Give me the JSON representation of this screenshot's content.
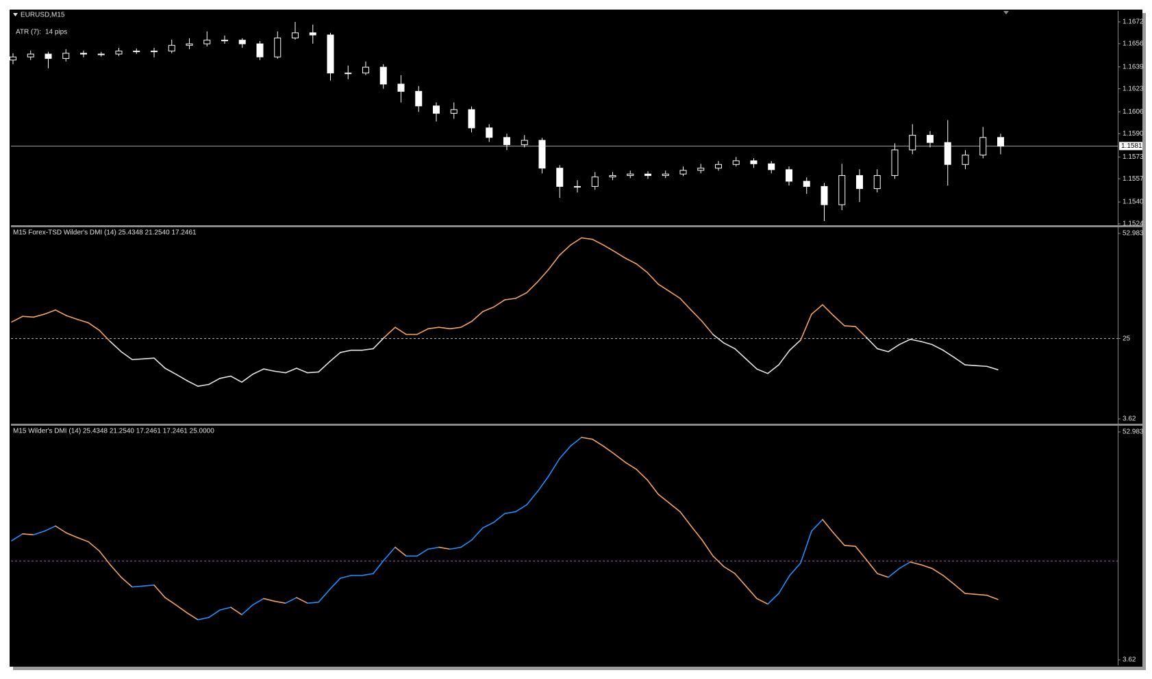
{
  "chart_data": [
    {
      "type": "candlestick",
      "title": "EURUSD,M15",
      "indicator_label": "ATR (7):",
      "indicator_value": "14 pips",
      "open": [
        1.1644,
        1.16463,
        1.16484,
        1.16452,
        1.1649,
        1.16484,
        1.16484,
        1.16506,
        1.16506,
        1.16506,
        1.16548,
        1.16559,
        1.16586,
        1.16586,
        1.16559,
        1.16463,
        1.16602,
        1.1664,
        1.16624,
        1.16345,
        1.16345,
        1.16388,
        1.16264,
        1.16211,
        1.16104,
        1.1605,
        1.16077,
        1.15943,
        1.15873,
        1.1582,
        1.15852,
        1.15648,
        1.15514,
        1.15514,
        1.15584,
        1.15594,
        1.15605,
        1.15594,
        1.15605,
        1.15632,
        1.15648,
        1.15675,
        1.15702,
        1.1568,
        1.15637,
        1.15552,
        1.15514,
        1.1538,
        1.15594,
        1.15498,
        1.15594,
        1.15782,
        1.15889,
        1.15836,
        1.15675,
        1.15744,
        1.15873
      ],
      "high": [
        1.1649,
        1.1651,
        1.165,
        1.1652,
        1.1651,
        1.165,
        1.1653,
        1.16525,
        1.1653,
        1.1659,
        1.166,
        1.1665,
        1.1662,
        1.166,
        1.1658,
        1.1665,
        1.1672,
        1.167,
        1.1664,
        1.164,
        1.1643,
        1.1641,
        1.1633,
        1.1625,
        1.1613,
        1.1613,
        1.161,
        1.1597,
        1.159,
        1.1589,
        1.1587,
        1.1567,
        1.1556,
        1.1562,
        1.1562,
        1.1563,
        1.15625,
        1.1563,
        1.1566,
        1.1568,
        1.157,
        1.1573,
        1.1572,
        1.157,
        1.1566,
        1.1558,
        1.1554,
        1.1568,
        1.1564,
        1.1564,
        1.1583,
        1.1597,
        1.1592,
        1.16,
        1.1578,
        1.1595,
        1.159
      ],
      "low": [
        1.1641,
        1.1644,
        1.1638,
        1.1643,
        1.1646,
        1.16465,
        1.1647,
        1.16485,
        1.1646,
        1.1649,
        1.1652,
        1.1654,
        1.1656,
        1.1653,
        1.1644,
        1.1645,
        1.1659,
        1.1656,
        1.1629,
        1.163,
        1.1633,
        1.1623,
        1.1613,
        1.1606,
        1.1599,
        1.1601,
        1.1591,
        1.1584,
        1.1578,
        1.158,
        1.1561,
        1.1543,
        1.1547,
        1.1549,
        1.1556,
        1.15575,
        1.1557,
        1.15575,
        1.1559,
        1.1561,
        1.1563,
        1.1566,
        1.1565,
        1.1561,
        1.1552,
        1.1546,
        1.1526,
        1.1534,
        1.154,
        1.1547,
        1.1557,
        1.1575,
        1.158,
        1.1552,
        1.1564,
        1.1572,
        1.1575
      ],
      "close": [
        1.16463,
        1.16484,
        1.16452,
        1.1649,
        1.16484,
        1.16484,
        1.16506,
        1.16506,
        1.16506,
        1.16548,
        1.16559,
        1.16586,
        1.16586,
        1.16559,
        1.16463,
        1.16602,
        1.1664,
        1.16624,
        1.16345,
        1.16345,
        1.16388,
        1.16264,
        1.16211,
        1.16104,
        1.1605,
        1.16077,
        1.15943,
        1.15873,
        1.1582,
        1.15852,
        1.15648,
        1.15514,
        1.15514,
        1.15584,
        1.15594,
        1.15605,
        1.15594,
        1.15605,
        1.15632,
        1.15648,
        1.15675,
        1.15702,
        1.1568,
        1.15637,
        1.15552,
        1.15514,
        1.1538,
        1.15594,
        1.15498,
        1.15594,
        1.15782,
        1.15889,
        1.15836,
        1.15675,
        1.15744,
        1.15873,
        1.15809
      ],
      "ylim": [
        1.1523,
        1.168
      ],
      "yticks": [
        1.1672,
        1.1656,
        1.1639,
        1.1623,
        1.1606,
        {
          "value": 1.159,
          "label": "1.1590"
        },
        1.1573,
        1.1557,
        {
          "value": 1.154,
          "label": "1.1540"
        },
        1.1524
      ],
      "price_line": 1.1581,
      "up_color": "#000000",
      "down_color": "#ffffff",
      "line_color": "#ffffff",
      "price_line_color": "#a0a0a0"
    },
    {
      "type": "line",
      "title": "M15 Forex-TSD Wilder's DMI (14) 25.4348 21.2540 17.2461",
      "values": [
        29.4,
        30.9,
        30.7,
        31.5,
        32.6,
        31.1,
        30.1,
        29.2,
        27.2,
        24.2,
        21.5,
        19.4,
        19.6,
        19.8,
        17.1,
        15.5,
        13.8,
        12.3,
        12.8,
        14.4,
        15.0,
        13.4,
        15.5,
        16.9,
        16.3,
        15.9,
        17.1,
        15.9,
        16.1,
        18.8,
        21.3,
        21.9,
        21.9,
        22.3,
        25.3,
        28.0,
        26.1,
        26.1,
        27.6,
        28.0,
        27.6,
        28.0,
        29.6,
        32.2,
        33.4,
        35.3,
        35.7,
        37.2,
        40.1,
        43.4,
        47.2,
        49.9,
        51.8,
        51.4,
        49.9,
        48.2,
        46.4,
        44.9,
        42.6,
        39.5,
        37.6,
        35.7,
        32.6,
        29.6,
        26.1,
        23.8,
        22.3,
        19.6,
        16.9,
        15.7,
        18.0,
        21.9,
        24.6,
        31.5,
        34.0,
        31.1,
        28.4,
        28.2,
        25.3,
        22.3,
        21.5,
        23.4,
        24.8,
        24.2,
        23.4,
        21.9,
        20.0,
        18.0,
        17.8,
        17.6,
        16.7
      ],
      "ylim": [
        3.62,
        52.983
      ],
      "yticks": [
        52.983,
        25,
        3.62
      ],
      "level": 25,
      "level_color": "#c0c0c0",
      "color_above": "#f4a460",
      "color_below": "#e6e6e6"
    },
    {
      "type": "line",
      "title": "M15 Wilder's DMI (14) 25.4348 21.2540 17.2461 17.2461 25.0000",
      "values": [
        29.4,
        30.9,
        30.7,
        31.5,
        32.6,
        31.1,
        30.1,
        29.2,
        27.2,
        24.2,
        21.5,
        19.4,
        19.6,
        19.8,
        17.1,
        15.5,
        13.8,
        12.3,
        12.8,
        14.4,
        15.0,
        13.4,
        15.5,
        16.9,
        16.3,
        15.9,
        17.1,
        15.9,
        16.1,
        18.8,
        21.3,
        21.9,
        21.9,
        22.3,
        25.3,
        28.0,
        26.1,
        26.1,
        27.6,
        28.0,
        27.6,
        28.0,
        29.6,
        32.2,
        33.4,
        35.3,
        35.7,
        37.2,
        40.1,
        43.4,
        47.2,
        49.9,
        51.8,
        51.4,
        49.9,
        48.2,
        46.4,
        44.9,
        42.6,
        39.5,
        37.6,
        35.7,
        32.6,
        29.6,
        26.1,
        23.8,
        22.3,
        19.6,
        16.9,
        15.7,
        18.0,
        21.9,
        24.6,
        31.5,
        34.0,
        31.1,
        28.4,
        28.2,
        25.3,
        22.3,
        21.5,
        23.4,
        24.8,
        24.2,
        23.4,
        21.9,
        20.0,
        18.0,
        17.8,
        17.6,
        16.7
      ],
      "ylim": [
        3.62,
        52.983
      ],
      "yticks": [
        52.983,
        3.62
      ],
      "level": 25,
      "level_color": "#b050c8",
      "color_up": "#1e90ff",
      "color_down": "#f4a460"
    }
  ]
}
